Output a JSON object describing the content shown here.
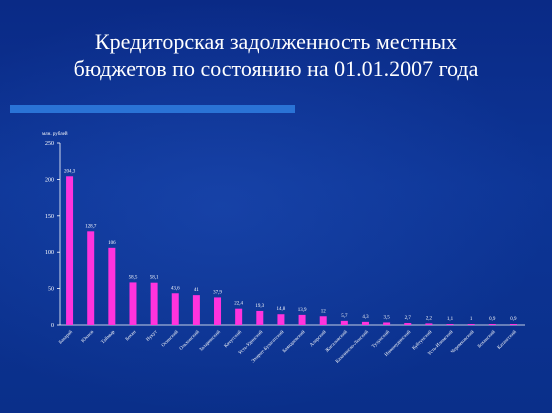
{
  "slide": {
    "title_line1": "Кредиторская задолженность местных",
    "title_line2": "бюджетов по состоянию на 01.01.2007 года"
  },
  "colors": {
    "background": "#0d3596",
    "bar": "#ff33dd",
    "accent_bar": "#2a73d6",
    "text": "#ffffff"
  },
  "chart_data": {
    "type": "bar",
    "title": "",
    "ylabel": "млн. рублей",
    "xlabel": "",
    "ylim": [
      0,
      250
    ],
    "yticks": [
      0,
      50,
      100,
      150,
      200,
      250
    ],
    "grid": false,
    "categories": [
      "Бакарай",
      "Юхнов",
      "Таймыр",
      "Бохан",
      "Нукут",
      "Осинский",
      "Ольхонский",
      "Заларинский",
      "Качугский",
      "Усть-Удинский",
      "Эхирит-Булагатский",
      "Баяндаевский",
      "Аларский",
      "Жигаловский",
      "Казачинско-Ленский",
      "Тулунский",
      "Нижнеудинский",
      "Куйтунский",
      "Усть-Илимский",
      "Черемховский",
      "Боханский",
      "Катангский"
    ],
    "values": [
      204.3,
      128.7,
      106,
      58.5,
      58.1,
      43.6,
      41,
      37.9,
      22.4,
      19.3,
      14.8,
      13.9,
      12,
      5.7,
      4.3,
      3.5,
      2.7,
      2.2,
      1.1,
      1,
      0.9,
      0.9
    ],
    "value_labels": [
      "204,3",
      "128,7",
      "106",
      "58,5",
      "58,1",
      "43,6",
      "41",
      "37,9",
      "22,4",
      "19,3",
      "14,8",
      "13,9",
      "12",
      "5,7",
      "4,3",
      "3,5",
      "2,7",
      "2,2",
      "1,1",
      "1",
      "0,9",
      "0,9"
    ]
  }
}
